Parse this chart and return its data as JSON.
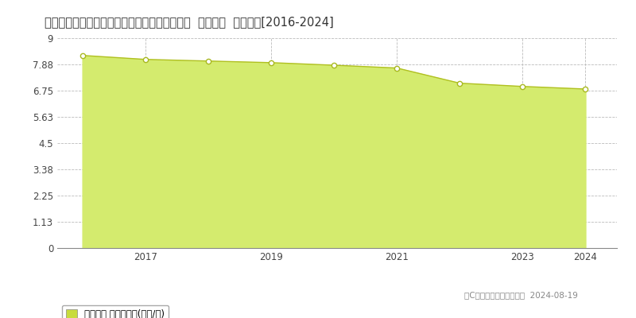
{
  "title": "栃木県栃木市西方町金崎字西宿並３２９番１外  地価公示  地価推移[2016-2024]",
  "years": [
    2016,
    2017,
    2018,
    2019,
    2020,
    2021,
    2022,
    2023,
    2024
  ],
  "values": [
    8.26,
    8.09,
    8.02,
    7.95,
    7.84,
    7.72,
    7.07,
    6.93,
    6.82
  ],
  "ylim": [
    0,
    9
  ],
  "yticks": [
    0,
    1.13,
    2.25,
    3.38,
    4.5,
    5.63,
    6.75,
    7.88,
    9
  ],
  "ytick_labels": [
    "0",
    "1.13",
    "2.25",
    "3.38",
    "4.5",
    "5.63",
    "6.75",
    "7.88",
    "9"
  ],
  "xticks": [
    2017,
    2019,
    2021,
    2023,
    2024
  ],
  "xlim": [
    2015.6,
    2024.5
  ],
  "fill_color": "#d4eb6e",
  "line_color": "#b0c020",
  "marker_facecolor": "#ffffff",
  "marker_edgecolor": "#a8b820",
  "grid_color": "#bbbbbb",
  "bg_color": "#ffffff",
  "plot_bg_color": "#ffffff",
  "legend_label": "地価公示 平均坪単価(万円/坪)",
  "legend_color": "#c8dc3c",
  "copyright_text": "（C）土地価格ドットコム  2024-08-19",
  "title_fontsize": 10.5,
  "axis_fontsize": 8.5,
  "legend_fontsize": 8.5,
  "copyright_fontsize": 7.5
}
